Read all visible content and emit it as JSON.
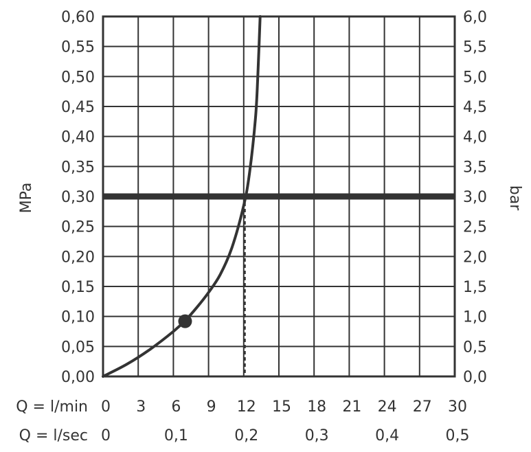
{
  "chart_data": {
    "type": "line",
    "title": "",
    "ylabel_left": "MPa",
    "ylabel_right": "bar",
    "x_row_labels": [
      "Q = l/min",
      "Q = l/sec"
    ],
    "xlim": [
      0,
      30
    ],
    "ylim": [
      0,
      0.6
    ],
    "ylim_right": [
      0,
      6
    ],
    "grid": true,
    "y_ticks_left": [
      "0,00",
      "0,05",
      "0,10",
      "0,15",
      "0,20",
      "0,25",
      "0,30",
      "0,35",
      "0,40",
      "0,45",
      "0,50",
      "0,55",
      "0,60"
    ],
    "y_ticks_right": [
      "0,0",
      "0,5",
      "1,0",
      "1,5",
      "2,0",
      "2,5",
      "3,0",
      "3,5",
      "4,0",
      "4,5",
      "5,0",
      "5,5",
      "6,0"
    ],
    "x_ticks_lmin": [
      "0",
      "3",
      "6",
      "9",
      "12",
      "15",
      "18",
      "21",
      "24",
      "27",
      "30"
    ],
    "x_ticks_lmin_values": [
      0,
      3,
      6,
      9,
      12,
      15,
      18,
      21,
      24,
      27,
      30
    ],
    "x_ticks_lsec": [
      "0",
      "0,1",
      "0,2",
      "0,3",
      "0,4",
      "0,5"
    ],
    "x_ticks_lsec_values": [
      0,
      6,
      12,
      18,
      24,
      30
    ],
    "series": [
      {
        "x": [
          0,
          2,
          4,
          6,
          7,
          8,
          9,
          10,
          11,
          12,
          12.5,
          13,
          13.2,
          13.4
        ],
        "y": [
          0.0,
          0.02,
          0.045,
          0.075,
          0.093,
          0.115,
          0.14,
          0.17,
          0.215,
          0.285,
          0.34,
          0.43,
          0.5,
          0.6
        ]
      }
    ],
    "reference_line": {
      "y": 0.3
    },
    "intersection": {
      "x": 12.1,
      "y": 0.3
    },
    "marker": {
      "x": 7,
      "y": 0.092
    }
  }
}
